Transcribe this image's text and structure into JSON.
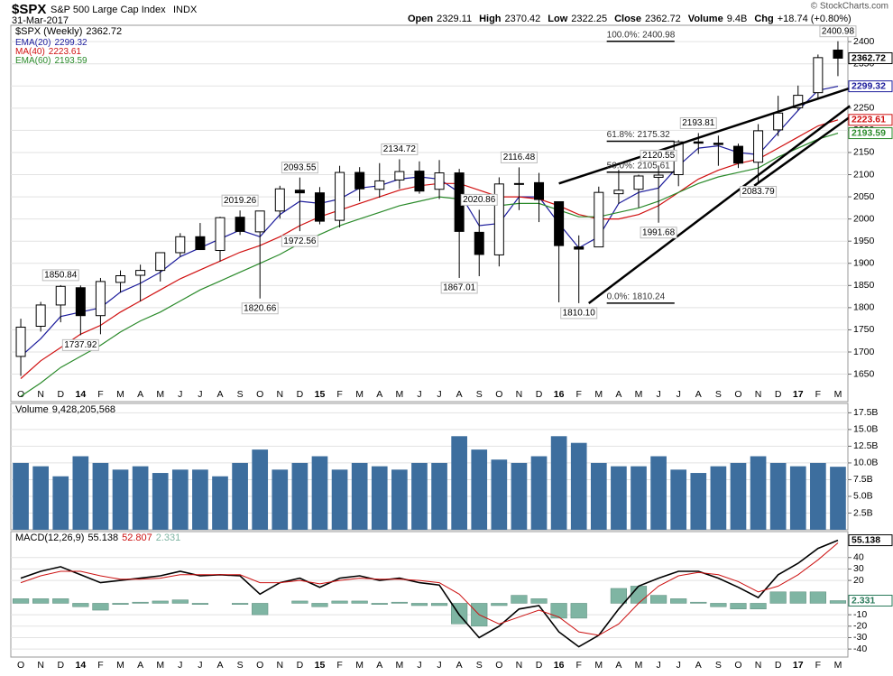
{
  "header": {
    "symbol": "$SPX",
    "name": "S&P 500 Large Cap Index",
    "exchange": "INDX",
    "date": "31-Mar-2017",
    "quote": [
      {
        "label": "Open",
        "value": "2329.11"
      },
      {
        "label": "High",
        "value": "2370.42"
      },
      {
        "label": "Low",
        "value": "2322.25"
      },
      {
        "label": "Close",
        "value": "2362.72"
      },
      {
        "label": "Volume",
        "value": "9.4B"
      },
      {
        "label": "Chg",
        "value": "+18.74 (+0.80%)"
      }
    ],
    "copyright": "© StockCharts.com"
  },
  "chart_data": [
    {
      "type": "candlestick",
      "name": "$SPX (Weekly)",
      "categories": [
        "O",
        "N",
        "D",
        "14",
        "F",
        "M",
        "A",
        "M",
        "J",
        "J",
        "A",
        "S",
        "O",
        "N",
        "D",
        "15",
        "F",
        "M",
        "A",
        "M",
        "J",
        "J",
        "A",
        "S",
        "O",
        "N",
        "D",
        "16",
        "F",
        "M",
        "A",
        "M",
        "J",
        "J",
        "A",
        "S",
        "O",
        "N",
        "D",
        "17",
        "F",
        "M"
      ],
      "ohlc": [
        [
          1690,
          1775,
          1646,
          1756
        ],
        [
          1758,
          1813,
          1746,
          1806
        ],
        [
          1806,
          1850.84,
          1767,
          1848
        ],
        [
          1845,
          1850,
          1737.92,
          1782
        ],
        [
          1782,
          1867,
          1740,
          1859
        ],
        [
          1857,
          1884,
          1834,
          1872
        ],
        [
          1873,
          1897,
          1814,
          1884
        ],
        [
          1884,
          1924,
          1859,
          1924
        ],
        [
          1924,
          1968,
          1915,
          1960
        ],
        [
          1960,
          1991,
          1930,
          1931
        ],
        [
          1929,
          2005,
          1904,
          2003
        ],
        [
          2004,
          2019.26,
          1964,
          1972
        ],
        [
          1971,
          2018,
          1820.66,
          2018
        ],
        [
          2018,
          2075,
          2001,
          2068
        ],
        [
          2065,
          2093.55,
          1972.56,
          2059
        ],
        [
          2059,
          2072,
          1988,
          1995
        ],
        [
          1997,
          2120,
          1981,
          2105
        ],
        [
          2105,
          2117,
          2040,
          2068
        ],
        [
          2067,
          2126,
          2048,
          2086
        ],
        [
          2088,
          2134.72,
          2068,
          2107
        ],
        [
          2108,
          2130,
          2057,
          2063
        ],
        [
          2067,
          2133,
          2045,
          2104
        ],
        [
          2104,
          2113,
          1867.01,
          1972
        ],
        [
          1970,
          2020.86,
          1871,
          1920
        ],
        [
          1919,
          2094,
          1893,
          2079
        ],
        [
          2080,
          2116.48,
          2020,
          2080
        ],
        [
          2082,
          2104,
          1993,
          2044
        ],
        [
          2039,
          2039,
          1812,
          1940
        ],
        [
          1937,
          1963,
          1810.1,
          1932
        ],
        [
          1937,
          2073,
          1937,
          2060
        ],
        [
          2057,
          2111,
          2034,
          2065
        ],
        [
          2067,
          2100,
          2026,
          2097
        ],
        [
          2094,
          2120.55,
          1991.68,
          2099
        ],
        [
          2100,
          2178,
          2074,
          2174
        ],
        [
          2174,
          2193.81,
          2147,
          2171
        ],
        [
          2171,
          2188,
          2120,
          2168
        ],
        [
          2164,
          2170,
          2115,
          2126
        ],
        [
          2128,
          2214,
          2083.79,
          2199
        ],
        [
          2201,
          2278,
          2187,
          2239
        ],
        [
          2251,
          2301,
          2245,
          2279
        ],
        [
          2285,
          2371,
          2271,
          2364
        ],
        [
          2381,
          2400.98,
          2322.25,
          2362.72
        ]
      ],
      "series": [
        {
          "name": "EMA(20)",
          "color": "#1c1c9c",
          "values": [
            1690,
            1730,
            1780,
            1790,
            1800,
            1835,
            1855,
            1880,
            1915,
            1935,
            1955,
            1975,
            1960,
            2010,
            2040,
            2035,
            2045,
            2070,
            2075,
            2090,
            2095,
            2090,
            2060,
            1985,
            1990,
            2050,
            2050,
            1990,
            1935,
            1960,
            2035,
            2060,
            2070,
            2120,
            2160,
            2165,
            2150,
            2145,
            2195,
            2245,
            2290,
            2299.32
          ]
        },
        {
          "name": "MA(40)",
          "color": "#d01010",
          "values": [
            1640,
            1680,
            1710,
            1740,
            1760,
            1790,
            1815,
            1840,
            1865,
            1885,
            1905,
            1925,
            1940,
            1960,
            1985,
            2005,
            2020,
            2035,
            2050,
            2065,
            2075,
            2080,
            2080,
            2065,
            2050,
            2050,
            2045,
            2030,
            2010,
            2000,
            2000,
            2010,
            2030,
            2060,
            2090,
            2110,
            2125,
            2135,
            2160,
            2185,
            2210,
            2223.61
          ]
        },
        {
          "name": "EMA(60)",
          "color": "#2a8a2a",
          "values": [
            1600,
            1630,
            1665,
            1690,
            1715,
            1745,
            1770,
            1790,
            1815,
            1840,
            1860,
            1880,
            1900,
            1920,
            1945,
            1965,
            1985,
            2000,
            2015,
            2030,
            2040,
            2050,
            2045,
            2035,
            2030,
            2035,
            2035,
            2020,
            2005,
            2005,
            2015,
            2025,
            2040,
            2060,
            2080,
            2095,
            2105,
            2115,
            2140,
            2160,
            2180,
            2193.59
          ]
        }
      ],
      "ylim": [
        1588,
        2437
      ],
      "yticks": [
        1650,
        1700,
        1750,
        1800,
        1850,
        1900,
        1950,
        2000,
        2050,
        2100,
        2150,
        2200,
        2250,
        2300,
        2350,
        2400
      ],
      "grid": true,
      "annotations": [
        {
          "label": "1850.84",
          "x": 2,
          "value": 1850.84
        },
        {
          "label": "1737.92",
          "x": 3,
          "value": 1737.92
        },
        {
          "label": "2019.26",
          "x": 11,
          "value": 2019.26
        },
        {
          "label": "1820.66",
          "x": 12,
          "value": 1820.66
        },
        {
          "label": "2093.55",
          "x": 14,
          "value": 2093.55
        },
        {
          "label": "1972.56",
          "x": 14,
          "value": 1972.56
        },
        {
          "label": "2134.72",
          "x": 19,
          "value": 2134.72
        },
        {
          "label": "1867.01",
          "x": 22,
          "value": 1867.01
        },
        {
          "label": "2020.86",
          "x": 23,
          "value": 2020.86
        },
        {
          "label": "2116.48",
          "x": 25,
          "value": 2116.48
        },
        {
          "label": "1810.10",
          "x": 28,
          "value": 1810.1
        },
        {
          "label": "2120.55",
          "x": 32,
          "value": 2120.55
        },
        {
          "label": "1991.68",
          "x": 32,
          "value": 1991.68
        },
        {
          "label": "2193.81",
          "x": 34,
          "value": 2193.81
        },
        {
          "label": "2083.79",
          "x": 37,
          "value": 2083.79
        },
        {
          "label": "2400.98",
          "x": 41,
          "value": 2400.98
        }
      ],
      "fibonacci": [
        {
          "label": "100.0%: 2400.98",
          "value": 2400.98
        },
        {
          "label": "61.8%: 2175.32",
          "value": 2175.32
        },
        {
          "label": "50.0%: 2105.61",
          "value": 2105.61
        },
        {
          "label": "0.0%: 1810.24",
          "value": 1810.24
        }
      ],
      "trendlines": [
        [
          27,
          2080,
          41.6,
          2295
        ],
        [
          28.5,
          1810,
          41.6,
          2255
        ],
        [
          36.8,
          2075,
          41.6,
          2230
        ]
      ]
    },
    {
      "type": "bar",
      "name": "Volume",
      "legend_value": "9,428,205,568",
      "color": "#3d6e9e",
      "values": [
        10,
        9.5,
        8,
        11,
        10,
        9,
        9.5,
        8.5,
        9,
        9,
        8,
        10,
        12,
        9,
        10,
        11,
        9,
        10,
        9.5,
        9,
        10,
        10,
        14,
        12,
        10.5,
        10,
        11,
        14,
        13,
        10,
        9.5,
        9.5,
        11,
        9,
        8.5,
        9.5,
        10,
        11,
        10,
        9.5,
        10,
        9.428205568
      ],
      "ylim": [
        0,
        18.9
      ],
      "yticks": [
        {
          "value": 2.5,
          "label": "2.5B"
        },
        {
          "value": 5,
          "label": "5.0B"
        },
        {
          "value": 7.5,
          "label": "7.5B"
        },
        {
          "value": 10,
          "label": "10.0B"
        },
        {
          "value": 12.5,
          "label": "12.5B"
        },
        {
          "value": 15,
          "label": "15.0B"
        },
        {
          "value": 17.5,
          "label": "17.5B"
        }
      ],
      "grid": true
    },
    {
      "type": "line",
      "categories": [
        "O",
        "N",
        "D",
        "14",
        "F",
        "M",
        "A",
        "M",
        "J",
        "J",
        "A",
        "S",
        "O",
        "N",
        "D",
        "15",
        "F",
        "M",
        "A",
        "M",
        "J",
        "J",
        "A",
        "S",
        "O",
        "N",
        "D",
        "16",
        "F",
        "M",
        "A",
        "M",
        "J",
        "J",
        "A",
        "S",
        "O",
        "N",
        "D",
        "17",
        "F",
        "M"
      ],
      "series": [
        {
          "name": "MACD(12,26,9)",
          "color": "#000000",
          "values": [
            22,
            28,
            32,
            25,
            18,
            20,
            22,
            24,
            28,
            24,
            25,
            24,
            8,
            18,
            22,
            14,
            22,
            24,
            20,
            22,
            18,
            16,
            -10,
            -30,
            -20,
            -5,
            -2,
            -25,
            -38,
            -28,
            -5,
            15,
            22,
            28,
            28,
            22,
            14,
            5,
            25,
            35,
            48,
            55.138
          ]
        },
        {
          "color": "#cc1111",
          "values": [
            18,
            24,
            28,
            28,
            24,
            21,
            21,
            22,
            25,
            25,
            25,
            25,
            18,
            18,
            20,
            17,
            20,
            22,
            21,
            21,
            20,
            18,
            8,
            -10,
            -18,
            -12,
            -6,
            -12,
            -25,
            -28,
            -18,
            0,
            15,
            24,
            27,
            25,
            19,
            10,
            15,
            25,
            38,
            52.807
          ]
        },
        {
          "color": "#7fb5a3",
          "type": "bar",
          "values": [
            4,
            4,
            4,
            -3,
            -6,
            -1,
            1,
            2,
            3,
            -1,
            0,
            -1,
            -10,
            0,
            2,
            -3,
            2,
            2,
            -1,
            1,
            -2,
            -2,
            -18,
            -20,
            -2,
            7,
            4,
            -13,
            -13,
            0,
            13,
            15,
            7,
            4,
            1,
            -3,
            -5,
            -5,
            10,
            10,
            10,
            2.331
          ]
        }
      ],
      "ylim": [
        -47,
        62.7
      ],
      "yticks": [
        40,
        30,
        20,
        -10,
        -20,
        -30,
        -40
      ],
      "grid": true
    }
  ]
}
